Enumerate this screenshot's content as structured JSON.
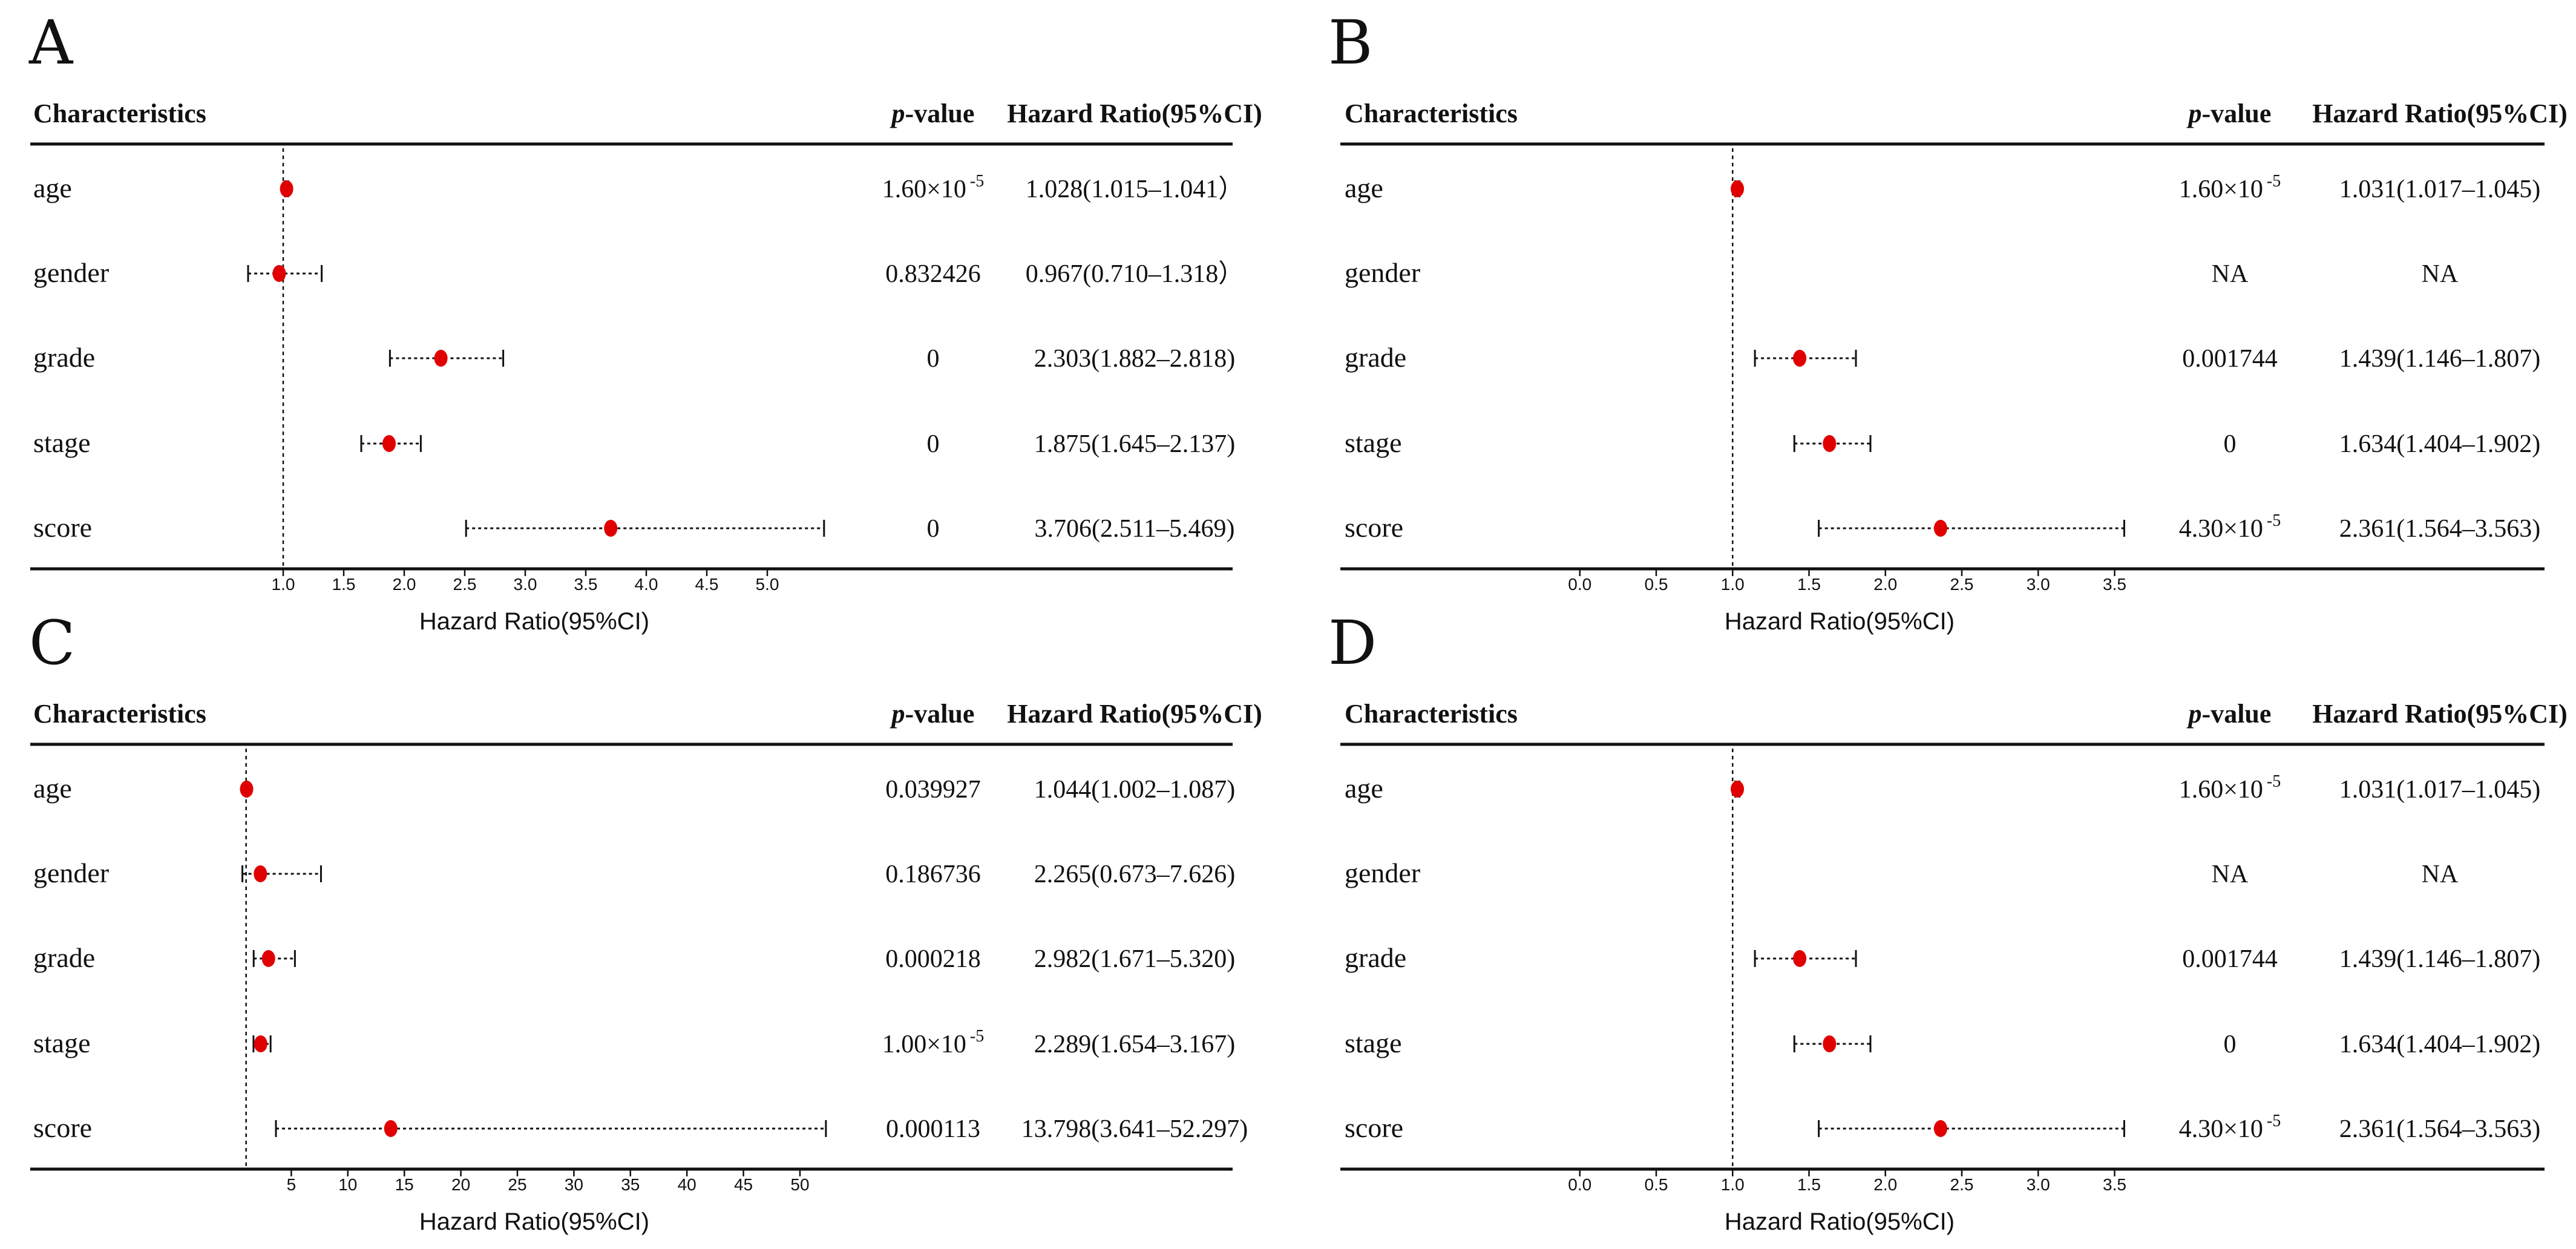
{
  "header": {
    "characteristics": "Characteristics",
    "p_label_italic": "p",
    "p_label_rest": "-value",
    "hr": "Hazard Ratio(95%CI)"
  },
  "chart_data": [
    {
      "type": "forest",
      "panel": "A",
      "xlabel": "Hazard Ratio(95%CI)",
      "xlim": [
        0.6,
        5.55
      ],
      "ref": 1.0,
      "ticks": [
        "1.0",
        "1.5",
        "2.0",
        "2.5",
        "3.0",
        "3.5",
        "4.0",
        "4.5",
        "5.0"
      ],
      "rows": [
        {
          "label": "age",
          "hr": 1.028,
          "lo": 1.015,
          "hi": 1.041,
          "p": "1.60×10",
          "p_exp": "-5",
          "hr_text": "1.028(1.015–1.041）"
        },
        {
          "label": "gender",
          "hr": 0.967,
          "lo": 0.71,
          "hi": 1.318,
          "p": "0.832426",
          "p_exp": "",
          "hr_text": "0.967(0.710–1.318）"
        },
        {
          "label": "grade",
          "hr": 2.303,
          "lo": 1.882,
          "hi": 2.818,
          "p": "0",
          "p_exp": "",
          "hr_text": "2.303(1.882–2.818)"
        },
        {
          "label": "stage",
          "hr": 1.875,
          "lo": 1.645,
          "hi": 2.137,
          "p": "0",
          "p_exp": "",
          "hr_text": "1.875(1.645–2.137)"
        },
        {
          "label": "score",
          "hr": 3.706,
          "lo": 2.511,
          "hi": 5.469,
          "p": "0",
          "p_exp": "",
          "hr_text": "3.706(2.511–5.469)"
        }
      ]
    },
    {
      "type": "forest",
      "panel": "B",
      "xlabel": "Hazard Ratio(95%CI)",
      "xlim": [
        -0.3,
        3.7
      ],
      "ref": 1.0,
      "ticks": [
        "0.0",
        "0.5",
        "1.0",
        "1.5",
        "2.0",
        "2.5",
        "3.0",
        "3.5"
      ],
      "rows": [
        {
          "label": "age",
          "hr": 1.031,
          "lo": 1.017,
          "hi": 1.045,
          "p": "1.60×10",
          "p_exp": "-5",
          "hr_text": "1.031(1.017–1.045)"
        },
        {
          "label": "gender",
          "hr": null,
          "lo": null,
          "hi": null,
          "p": "NA",
          "p_exp": "",
          "hr_text": "NA"
        },
        {
          "label": "grade",
          "hr": 1.439,
          "lo": 1.146,
          "hi": 1.807,
          "p": "0.001744",
          "p_exp": "",
          "hr_text": "1.439(1.146–1.807)"
        },
        {
          "label": "stage",
          "hr": 1.634,
          "lo": 1.404,
          "hi": 1.902,
          "p": "0",
          "p_exp": "",
          "hr_text": "1.634(1.404–1.902)"
        },
        {
          "label": "score",
          "hr": 2.361,
          "lo": 1.564,
          "hi": 3.563,
          "p": "4.30×10",
          "p_exp": "-5",
          "hr_text": "2.361(1.564–3.563)"
        }
      ]
    },
    {
      "type": "forest",
      "panel": "C",
      "xlabel": "Hazard Ratio(95%CI)",
      "xlim": [
        0,
        53
      ],
      "ref": 1.0,
      "ticks": [
        "5",
        "10",
        "15",
        "20",
        "25",
        "30",
        "35",
        "40",
        "45",
        "50"
      ],
      "rows": [
        {
          "label": "age",
          "hr": 1.044,
          "lo": 1.002,
          "hi": 1.087,
          "p": "0.039927",
          "p_exp": "",
          "hr_text": "1.044(1.002–1.087)"
        },
        {
          "label": "gender",
          "hr": 2.265,
          "lo": 0.673,
          "hi": 7.626,
          "p": "0.186736",
          "p_exp": "",
          "hr_text": "2.265(0.673–7.626)"
        },
        {
          "label": "grade",
          "hr": 2.982,
          "lo": 1.671,
          "hi": 5.32,
          "p": "0.000218",
          "p_exp": "",
          "hr_text": "2.982(1.671–5.320)"
        },
        {
          "label": "stage",
          "hr": 2.289,
          "lo": 1.654,
          "hi": 3.167,
          "p": "1.00×10",
          "p_exp": "-5",
          "hr_text": "2.289(1.654–3.167)"
        },
        {
          "label": "score",
          "hr": 13.798,
          "lo": 3.641,
          "hi": 52.297,
          "p": "0.000113",
          "p_exp": "",
          "hr_text": "13.798(3.641–52.297)"
        }
      ]
    },
    {
      "type": "forest",
      "panel": "D",
      "xlabel": "Hazard Ratio(95%CI)",
      "xlim": [
        -0.3,
        3.7
      ],
      "ref": 1.0,
      "ticks": [
        "0.0",
        "0.5",
        "1.0",
        "1.5",
        "2.0",
        "2.5",
        "3.0",
        "3.5"
      ],
      "rows": [
        {
          "label": "age",
          "hr": 1.031,
          "lo": 1.017,
          "hi": 1.045,
          "p": "1.60×10",
          "p_exp": "-5",
          "hr_text": "1.031(1.017–1.045)"
        },
        {
          "label": "gender",
          "hr": null,
          "lo": null,
          "hi": null,
          "p": "NA",
          "p_exp": "",
          "hr_text": "NA"
        },
        {
          "label": "grade",
          "hr": 1.439,
          "lo": 1.146,
          "hi": 1.807,
          "p": "0.001744",
          "p_exp": "",
          "hr_text": "1.439(1.146–1.807)"
        },
        {
          "label": "stage",
          "hr": 1.634,
          "lo": 1.404,
          "hi": 1.902,
          "p": "0",
          "p_exp": "",
          "hr_text": "1.634(1.404–1.902)"
        },
        {
          "label": "score",
          "hr": 2.361,
          "lo": 1.564,
          "hi": 3.563,
          "p": "4.30×10",
          "p_exp": "-5",
          "hr_text": "2.361(1.564–3.563)"
        }
      ]
    }
  ]
}
